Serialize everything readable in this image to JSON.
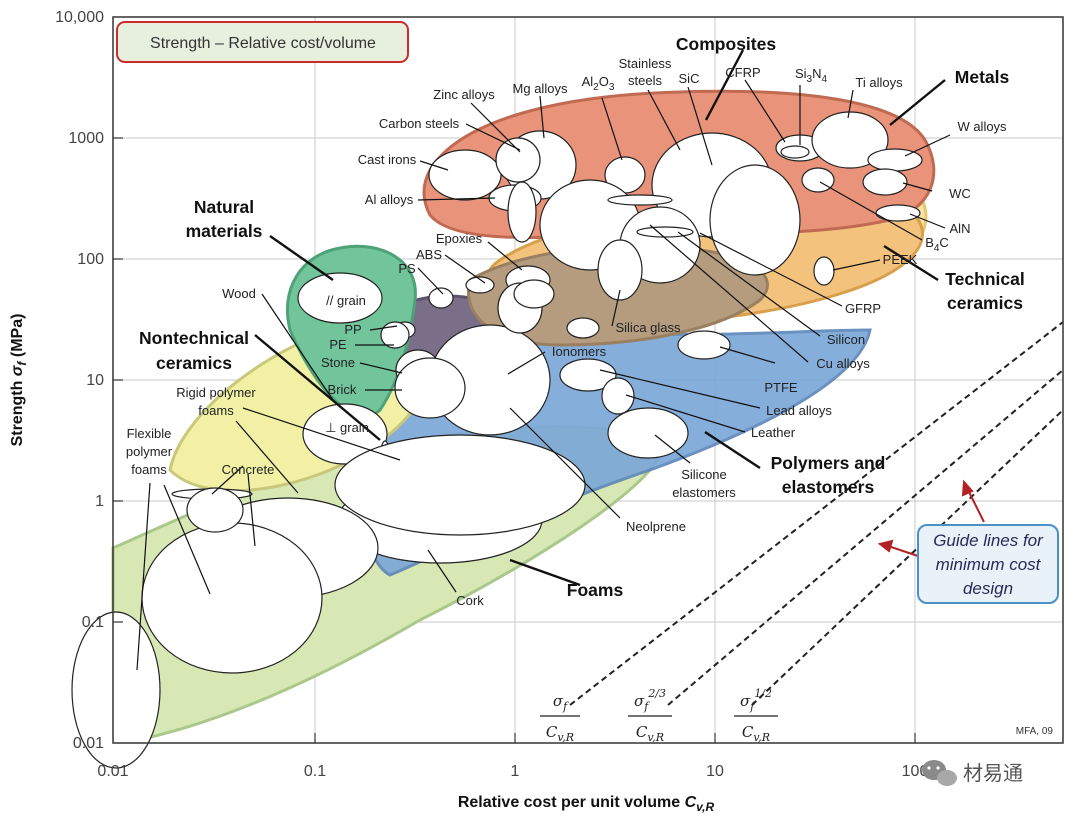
{
  "chart_data": {
    "type": "scatter",
    "title": "Strength – Relative cost/volume",
    "xlabel": "Relative cost per unit volume C_v,R",
    "ylabel": "Strength σ_f (MPa)",
    "xscale": "log",
    "yscale": "log",
    "xlim": [
      0.01,
      500
    ],
    "ylim": [
      0.01,
      10000
    ],
    "x_ticks": [
      "0.01",
      "0.1",
      "1",
      "10",
      "100"
    ],
    "y_ticks": [
      "0.01",
      "0.1",
      "1",
      "10",
      "100",
      "1000",
      "10,000"
    ],
    "families": [
      "Composites",
      "Metals",
      "Natural materials",
      "Nontechnical ceramics",
      "Technical ceramics",
      "Polymers and elastomers",
      "Foams"
    ],
    "materials": [
      {
        "name": "Zinc alloys",
        "family": "Metals"
      },
      {
        "name": "Mg alloys",
        "family": "Metals"
      },
      {
        "name": "Carbon steels",
        "family": "Metals"
      },
      {
        "name": "Cast irons",
        "family": "Metals"
      },
      {
        "name": "Al alloys",
        "family": "Metals"
      },
      {
        "name": "Stainless steels",
        "family": "Metals"
      },
      {
        "name": "Ti alloys",
        "family": "Metals"
      },
      {
        "name": "W alloys",
        "family": "Metals"
      },
      {
        "name": "Cu alloys",
        "family": "Metals"
      },
      {
        "name": "Lead alloys",
        "family": "Metals"
      },
      {
        "name": "Al2O3",
        "family": "Technical ceramics"
      },
      {
        "name": "SiC",
        "family": "Technical ceramics"
      },
      {
        "name": "Si3N4",
        "family": "Technical ceramics"
      },
      {
        "name": "WC",
        "family": "Technical ceramics"
      },
      {
        "name": "AlN",
        "family": "Technical ceramics"
      },
      {
        "name": "B4C",
        "family": "Technical ceramics"
      },
      {
        "name": "Silicon",
        "family": "Technical ceramics"
      },
      {
        "name": "CFRP",
        "family": "Composites"
      },
      {
        "name": "GFRP",
        "family": "Composites"
      },
      {
        "name": "Wood // grain",
        "family": "Natural materials"
      },
      {
        "name": "Wood ⊥ grain",
        "family": "Natural materials"
      },
      {
        "name": "Stone",
        "family": "Nontechnical ceramics"
      },
      {
        "name": "Brick",
        "family": "Nontechnical ceramics"
      },
      {
        "name": "Concrete",
        "family": "Nontechnical ceramics"
      },
      {
        "name": "Silica glass",
        "family": "Nontechnical ceramics"
      },
      {
        "name": "PEEK",
        "family": "Polymers and elastomers"
      },
      {
        "name": "PTFE",
        "family": "Polymers and elastomers"
      },
      {
        "name": "Epoxies",
        "family": "Polymers and elastomers"
      },
      {
        "name": "ABS",
        "family": "Polymers and elastomers"
      },
      {
        "name": "PS",
        "family": "Polymers and elastomers"
      },
      {
        "name": "PP",
        "family": "Polymers and elastomers"
      },
      {
        "name": "PE",
        "family": "Polymers and elastomers"
      },
      {
        "name": "Ionomers",
        "family": "Polymers and elastomers"
      },
      {
        "name": "Leather",
        "family": "Polymers and elastomers"
      },
      {
        "name": "Silicone elastomers",
        "family": "Polymers and elastomers"
      },
      {
        "name": "Neoprene",
        "family": "Polymers and elastomers"
      },
      {
        "name": "Cork",
        "family": "Foams"
      },
      {
        "name": "Rigid polymer foams",
        "family": "Foams"
      },
      {
        "name": "Flexible polymer foams",
        "family": "Foams"
      }
    ],
    "guide_lines": [
      "σf/Cv,R",
      "σf^(2/3)/Cv,R",
      "σf^(1/2)/Cv,R"
    ],
    "annotations": [
      "Guide lines for minimum cost design",
      "MFA, 09"
    ]
  },
  "text": {
    "title_box": "Strength – Relative cost/volume",
    "ylabel_main": "Strength ",
    "ylabel_sigma": "σ",
    "ylabel_sub": "f",
    "ylabel_unit": " (MPa)",
    "xlabel_main": "Relative cost per unit volume ",
    "xlabel_c": "C",
    "xlabel_sub": "v,R",
    "xticks": [
      "0.01",
      "0.1",
      "1",
      "10",
      "100"
    ],
    "yticks": [
      "0.01",
      "0.1",
      "1",
      "10",
      "100",
      "1000",
      "10,000"
    ],
    "families": {
      "composites": "Composites",
      "metals": "Metals",
      "natural_1": "Natural",
      "natural_2": "materials",
      "nontech_1": "Nontechnical",
      "nontech_2": "ceramics",
      "tech_1": "Technical",
      "tech_2": "ceramics",
      "poly_1": "Polymers and",
      "poly_2": "elastomers",
      "foams": "Foams"
    },
    "labels": {
      "zinc": "Zinc alloys",
      "mg": "Mg alloys",
      "al2o3_main": "Al",
      "al2o3_sub1": "2",
      "al2o3_mid": "O",
      "al2o3_sub2": "3",
      "stainless_1": "Stainless",
      "stainless_2": "steels",
      "sic": "SiC",
      "cfrp": "CFRP",
      "si3n4_main": "Si",
      "si3n4_sub1": "3",
      "si3n4_mid": "N",
      "si3n4_sub2": "4",
      "ti": "Ti alloys",
      "w": "W alloys",
      "wc": "WC",
      "aln": "AlN",
      "b4c_main": "B",
      "b4c_sub": "4",
      "b4c_end": "C",
      "peek": "PEEK",
      "gfrp": "GFRP",
      "silicon": "Silicon",
      "cu": "Cu alloys",
      "ptfe": "PTFE",
      "lead": "Lead alloys",
      "leather": "Leather",
      "silicone_1": "Silicone",
      "silicone_2": "elastomers",
      "neoprene": "Neolprene",
      "cork": "Cork",
      "carbon": "Carbon steels",
      "castiron": "Cast irons",
      "al": "Al alloys",
      "epoxies": "Epoxies",
      "abs": "ABS",
      "ps": "PS",
      "wood": "Wood",
      "pgrain": "// grain",
      "pp": "PP",
      "pe": "PE",
      "stone": "Stone",
      "brick": "Brick",
      "ionomers": "Ionomers",
      "silica": "Silica glass",
      "rigid_1": "Rigid polymer",
      "rigid_2": "foams",
      "tgrain": "⊥ grain",
      "flex_1": "Flexible",
      "flex_2": "polymer",
      "flex_3": "foams",
      "concrete": "Concrete"
    },
    "guide": {
      "note_1": "Guide lines for",
      "note_2": "minimum cost",
      "note_3": "design",
      "sigma": "σ",
      "f": "f",
      "c": "C",
      "vr": "v,R",
      "exp23": "2/3",
      "exp12": "1/2"
    },
    "credit": "MFA, 09",
    "watermark": "材易通"
  },
  "colors": {
    "foams": "#d8e8b4",
    "metals": "#e8937a",
    "composites": "#f3c37e",
    "tech_ceramics": "#f7e3a3",
    "nontech_ceramics": "#f2f0a4",
    "natural": "#72c49a",
    "polymers": "#7aa6d8",
    "elastomers_dark": "#7b6e88",
    "glass_brown": "#b59c7f",
    "title_border": "#cc2b2b",
    "guide_box": "#4a90c8",
    "arrow": "#b22222"
  }
}
